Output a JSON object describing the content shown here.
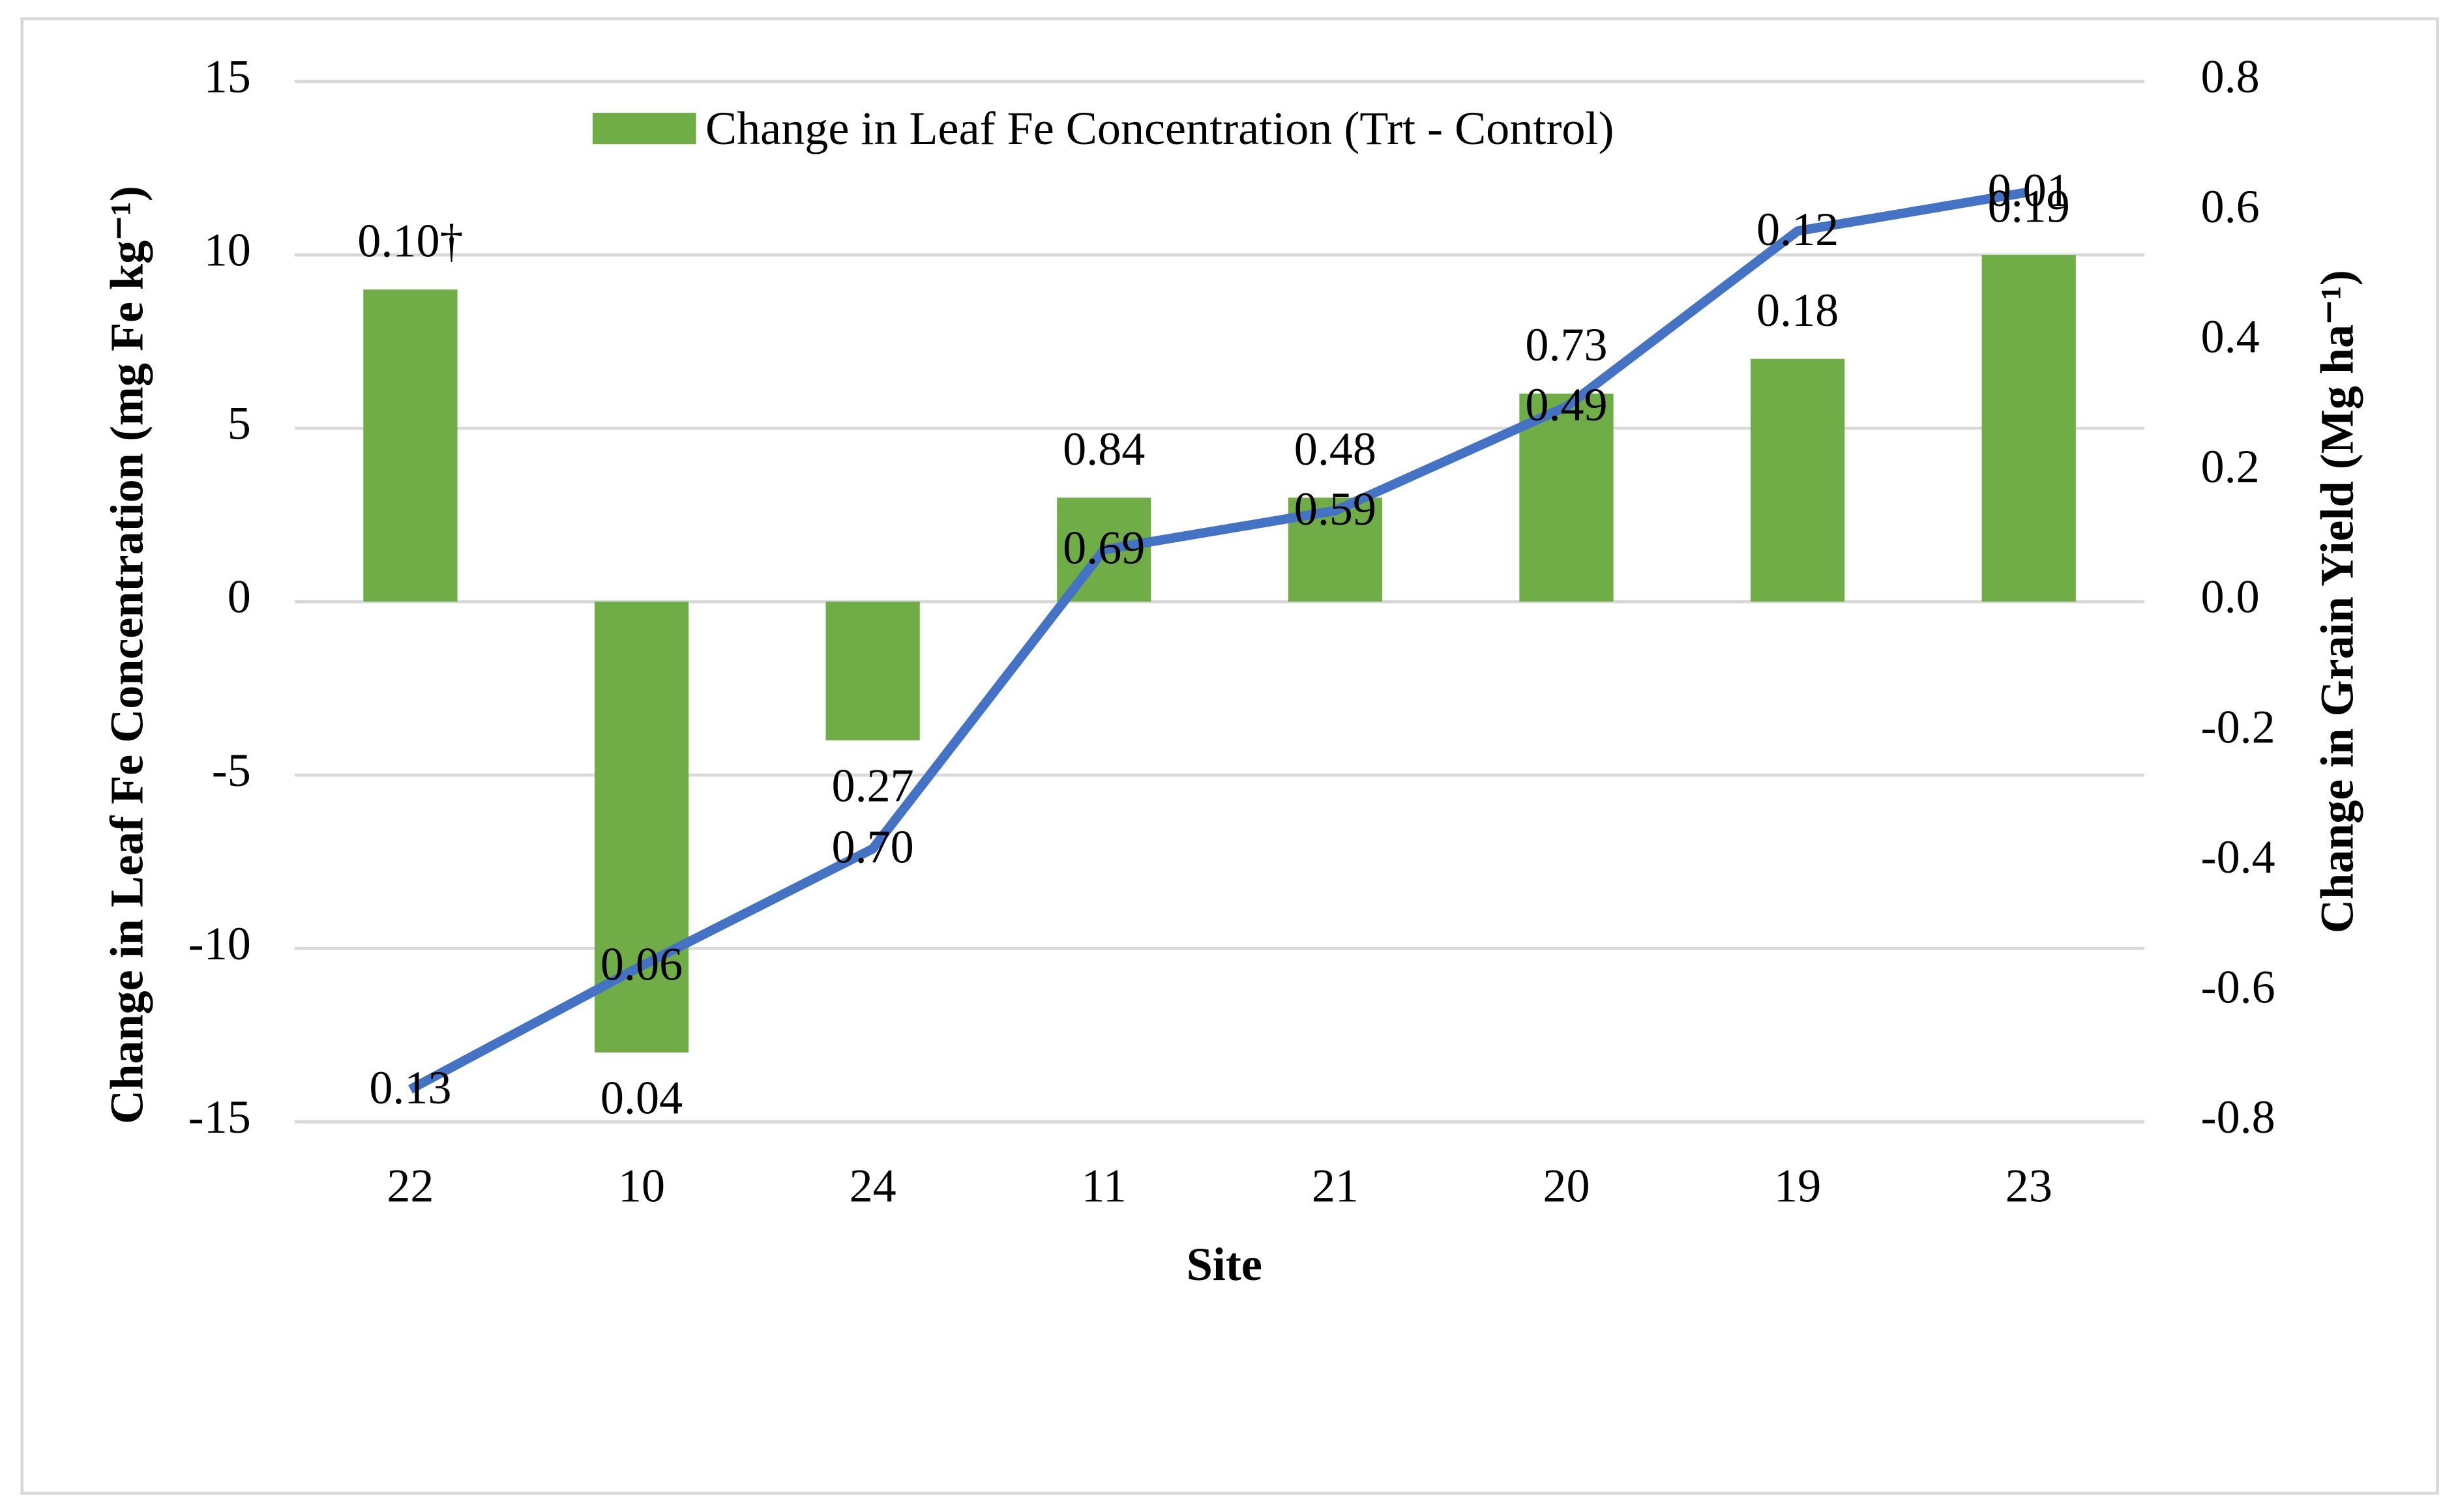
{
  "chart_data": {
    "type": "bar-line",
    "x_label": "Site",
    "y_label": "Change in Leaf Fe Concentration (mg Fe kg⁻¹)",
    "y2_label": "Change in Grain Yield (Mg ha⁻¹)",
    "categories": [
      "22",
      "10",
      "24",
      "11",
      "21",
      "20",
      "19",
      "23"
    ],
    "series": [
      {
        "name": "Change in Leaf Fe Concentration (Trt - Control)",
        "type": "bar",
        "color": "#70ad47",
        "values": [
          9,
          -13,
          -4,
          3,
          3,
          6,
          7,
          10
        ],
        "labels": [
          "0.10†",
          "0.04",
          "0.27",
          "0.84",
          "0.48",
          "0.73",
          "0.18",
          "0.19"
        ]
      },
      {
        "type": "line",
        "axis": "y2",
        "color": "#4472c4",
        "values": [
          -0.75,
          -0.56,
          -0.38,
          0.08,
          0.14,
          0.3,
          0.57,
          0.63
        ],
        "labels": [
          "0.13",
          "0.06",
          "0.70",
          "0.69",
          "0.59",
          "0.49",
          "0.12",
          "0.01"
        ]
      }
    ],
    "ylim": [
      -15,
      15
    ],
    "yticks": [
      -15,
      -10,
      -5,
      0,
      5,
      10,
      15
    ],
    "y2lim": [
      -0.8,
      0.8
    ],
    "y2ticks": [
      -0.8,
      -0.6,
      -0.4,
      -0.2,
      {
        "value": 0,
        "label": "0.0"
      },
      0.2,
      0.4,
      0.6,
      0.8
    ],
    "grid": true,
    "legend": "top"
  }
}
